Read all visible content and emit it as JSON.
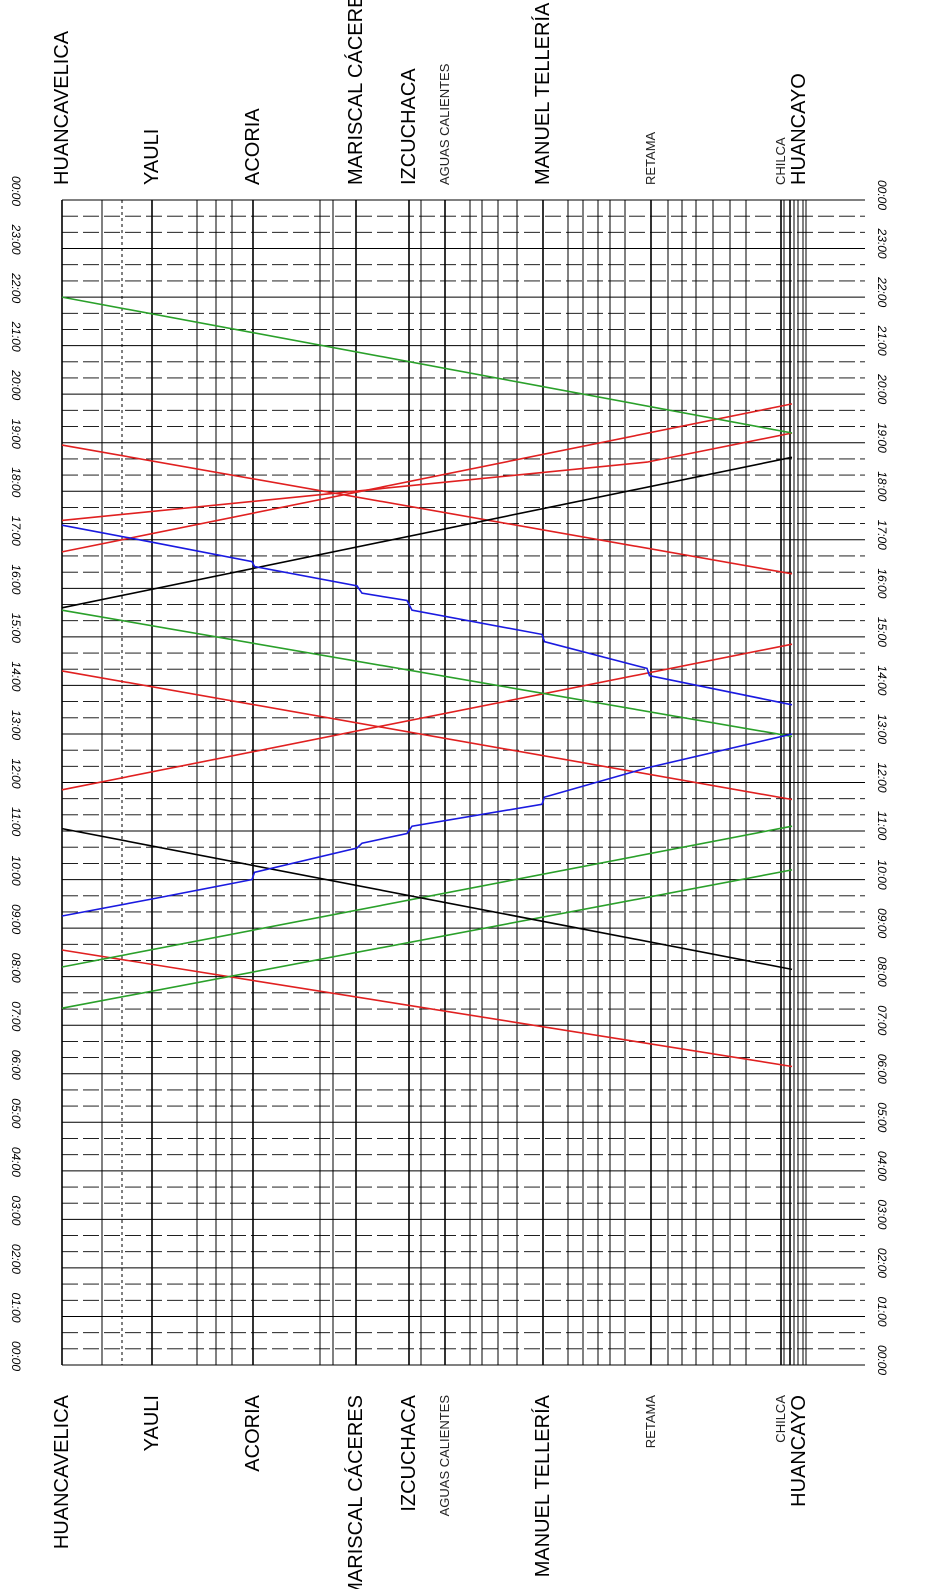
{
  "chart_data": {
    "type": "line",
    "title": "",
    "xlabel": "",
    "ylabel": "",
    "x_axis_orientation": "vertical, Huancavelica at top and Huancayo at bottom, time increasing from right to left",
    "time_ylim": [
      "00:00",
      "24:00"
    ],
    "time_ticks": [
      "00:00",
      "01:00",
      "02:00",
      "03:00",
      "04:00",
      "05:00",
      "06:00",
      "07:00",
      "08:00",
      "09:00",
      "10:00",
      "11:00",
      "12:00",
      "13:00",
      "14:00",
      "15:00",
      "16:00",
      "17:00",
      "18:00",
      "19:00",
      "20:00",
      "21:00",
      "22:00",
      "23:00",
      "00:00"
    ],
    "stations": [
      {
        "name": "HUANCAVELICA",
        "major": true
      },
      {
        "name": "YAULI",
        "major": true
      },
      {
        "name": "ACORIA",
        "major": true
      },
      {
        "name": "MARISCAL CÁCERES",
        "major": true
      },
      {
        "name": "IZCUCHACA",
        "major": true
      },
      {
        "name": "AGUAS CALIENTES",
        "major": false
      },
      {
        "name": "MANUEL TELLERÍA",
        "major": true
      },
      {
        "name": "RETAMA",
        "major": false
      },
      {
        "name": "CHILCA",
        "major": false
      },
      {
        "name": "HUANCAYO",
        "major": true
      }
    ],
    "grid": true,
    "series": [
      {
        "color": "#e02020",
        "points": [
          [
            0,
            8.55
          ],
          [
            14.6,
            6.15
          ]
        ]
      },
      {
        "color": "#e02020",
        "points": [
          [
            0,
            11.85
          ],
          [
            14.6,
            14.85
          ]
        ]
      },
      {
        "color": "#e02020",
        "points": [
          [
            0,
            14.3
          ],
          [
            14.6,
            11.65
          ]
        ]
      },
      {
        "color": "#e02020",
        "points": [
          [
            0,
            16.75
          ],
          [
            14.6,
            19.8
          ]
        ]
      },
      {
        "color": "#e02020",
        "points": [
          [
            0,
            18.95
          ],
          [
            14.6,
            16.3
          ]
        ]
      },
      {
        "color": "#e02020",
        "points": [
          [
            0,
            17.4
          ],
          [
            11.7,
            18.6
          ],
          [
            14.6,
            19.2
          ]
        ]
      },
      {
        "color": "#2aa02a",
        "points": [
          [
            0,
            8.2
          ],
          [
            14.6,
            11.1
          ]
        ]
      },
      {
        "color": "#2aa02a",
        "points": [
          [
            0,
            7.35
          ],
          [
            14.6,
            10.2
          ]
        ]
      },
      {
        "color": "#2aa02a",
        "points": [
          [
            0,
            15.55
          ],
          [
            14.6,
            12.95
          ]
        ]
      },
      {
        "color": "#2aa02a",
        "points": [
          [
            0,
            22.0
          ],
          [
            14.6,
            19.2
          ]
        ]
      },
      {
        "color": "#000000",
        "points": [
          [
            0,
            11.05
          ],
          [
            14.6,
            8.15
          ]
        ]
      },
      {
        "color": "#000000",
        "points": [
          [
            0,
            15.6
          ],
          [
            14.6,
            18.7
          ]
        ]
      },
      {
        "color": "#1a1ae0",
        "points": [
          [
            0,
            9.25
          ],
          [
            1.8,
            9.6
          ],
          [
            3.8,
            10.0
          ],
          [
            3.85,
            10.15
          ],
          [
            5.9,
            10.65
          ],
          [
            6.0,
            10.75
          ],
          [
            6.9,
            10.95
          ],
          [
            7.0,
            11.1
          ],
          [
            9.6,
            11.55
          ],
          [
            9.65,
            11.7
          ],
          [
            11.7,
            12.3
          ],
          [
            14.6,
            13.0
          ]
        ]
      },
      {
        "color": "#1a1ae0",
        "points": [
          [
            0,
            17.3
          ],
          [
            1.8,
            16.95
          ],
          [
            3.8,
            16.55
          ],
          [
            3.85,
            16.45
          ],
          [
            5.9,
            16.05
          ],
          [
            6.0,
            15.9
          ],
          [
            6.9,
            15.75
          ],
          [
            7.0,
            15.55
          ],
          [
            9.6,
            15.05
          ],
          [
            9.65,
            14.9
          ],
          [
            11.7,
            14.35
          ],
          [
            11.75,
            14.2
          ],
          [
            14.6,
            13.6
          ]
        ]
      }
    ]
  }
}
